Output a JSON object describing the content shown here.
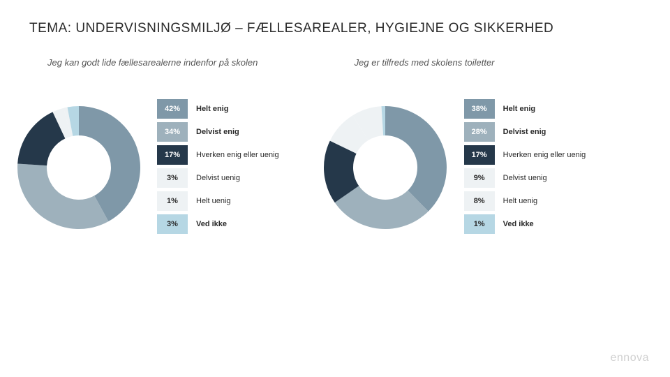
{
  "title": "TEMA: UNDERVISNINGSMILJØ – FÆLLESAREALER, HYGIEJNE OG SIKKERHED",
  "brand": "ennova",
  "categories": [
    {
      "key": "helt_enig",
      "label": "Helt enig",
      "bold": true
    },
    {
      "key": "delvist_enig",
      "label": "Delvist enig",
      "bold": true
    },
    {
      "key": "hverken",
      "label": "Hverken enig eller uenig",
      "bold": false
    },
    {
      "key": "delvist_uenig",
      "label": "Delvist uenig",
      "bold": false
    },
    {
      "key": "helt_uenig",
      "label": "Helt uenig",
      "bold": false
    },
    {
      "key": "ved_ikke",
      "label": "Ved ikke",
      "bold": true
    }
  ],
  "colors": {
    "helt_enig": {
      "fill": "#7f98a8",
      "text": "#ffffff"
    },
    "delvist_enig": {
      "fill": "#9eb1bc",
      "text": "#ffffff"
    },
    "hverken": {
      "fill": "#25384a",
      "text": "#ffffff"
    },
    "delvist_uenig": {
      "fill": "#eef2f4",
      "text": "#2a2a2a"
    },
    "helt_uenig": {
      "fill": "#eef2f4",
      "text": "#2a2a2a"
    },
    "ved_ikke": {
      "fill": "#b6d7e4",
      "text": "#2a2a2a"
    }
  },
  "donut": {
    "outer_radius": 88,
    "inner_radius": 46,
    "start_angle_deg": -90,
    "background": "#ffffff"
  },
  "charts": [
    {
      "subtitle": "Jeg kan godt lide fællesarealerne indenfor på skolen",
      "values": {
        "helt_enig": 42,
        "delvist_enig": 34,
        "hverken": 17,
        "delvist_uenig": 3,
        "helt_uenig": 1,
        "ved_ikke": 3
      }
    },
    {
      "subtitle": "Jeg er tilfreds med skolens toiletter",
      "values": {
        "helt_enig": 38,
        "delvist_enig": 28,
        "hverken": 17,
        "delvist_uenig": 9,
        "helt_uenig": 8,
        "ved_ikke": 1
      }
    }
  ]
}
